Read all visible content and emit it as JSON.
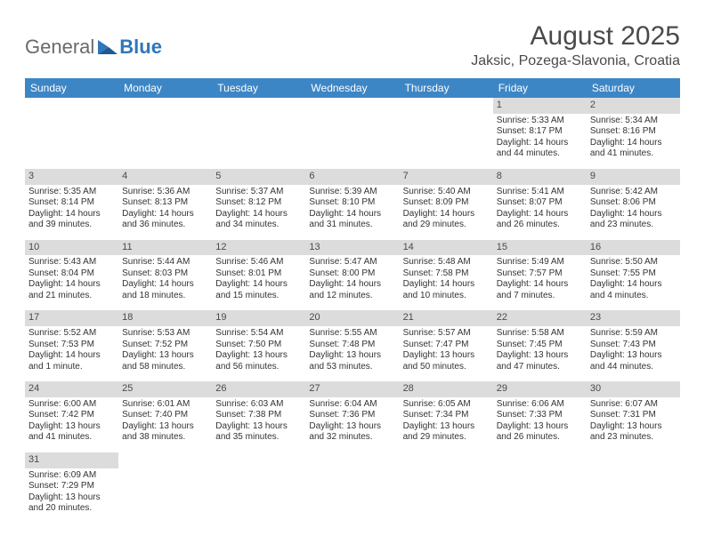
{
  "logo": {
    "text1": "General",
    "text2": "Blue"
  },
  "title": "August 2025",
  "location": "Jaksic, Pozega-Slavonia, Croatia",
  "weekdays": [
    "Sunday",
    "Monday",
    "Tuesday",
    "Wednesday",
    "Thursday",
    "Friday",
    "Saturday"
  ],
  "colors": {
    "header_bg": "#3d86c6",
    "header_fg": "#ffffff",
    "daynum_bg": "#dcdcdc",
    "page_bg": "#ffffff",
    "text": "#333333",
    "logo_blue": "#2f77bb"
  },
  "weeks": [
    [
      null,
      null,
      null,
      null,
      null,
      {
        "n": "1",
        "sr": "Sunrise: 5:33 AM",
        "ss": "Sunset: 8:17 PM",
        "dl1": "Daylight: 14 hours",
        "dl2": "and 44 minutes."
      },
      {
        "n": "2",
        "sr": "Sunrise: 5:34 AM",
        "ss": "Sunset: 8:16 PM",
        "dl1": "Daylight: 14 hours",
        "dl2": "and 41 minutes."
      }
    ],
    [
      {
        "n": "3",
        "sr": "Sunrise: 5:35 AM",
        "ss": "Sunset: 8:14 PM",
        "dl1": "Daylight: 14 hours",
        "dl2": "and 39 minutes."
      },
      {
        "n": "4",
        "sr": "Sunrise: 5:36 AM",
        "ss": "Sunset: 8:13 PM",
        "dl1": "Daylight: 14 hours",
        "dl2": "and 36 minutes."
      },
      {
        "n": "5",
        "sr": "Sunrise: 5:37 AM",
        "ss": "Sunset: 8:12 PM",
        "dl1": "Daylight: 14 hours",
        "dl2": "and 34 minutes."
      },
      {
        "n": "6",
        "sr": "Sunrise: 5:39 AM",
        "ss": "Sunset: 8:10 PM",
        "dl1": "Daylight: 14 hours",
        "dl2": "and 31 minutes."
      },
      {
        "n": "7",
        "sr": "Sunrise: 5:40 AM",
        "ss": "Sunset: 8:09 PM",
        "dl1": "Daylight: 14 hours",
        "dl2": "and 29 minutes."
      },
      {
        "n": "8",
        "sr": "Sunrise: 5:41 AM",
        "ss": "Sunset: 8:07 PM",
        "dl1": "Daylight: 14 hours",
        "dl2": "and 26 minutes."
      },
      {
        "n": "9",
        "sr": "Sunrise: 5:42 AM",
        "ss": "Sunset: 8:06 PM",
        "dl1": "Daylight: 14 hours",
        "dl2": "and 23 minutes."
      }
    ],
    [
      {
        "n": "10",
        "sr": "Sunrise: 5:43 AM",
        "ss": "Sunset: 8:04 PM",
        "dl1": "Daylight: 14 hours",
        "dl2": "and 21 minutes."
      },
      {
        "n": "11",
        "sr": "Sunrise: 5:44 AM",
        "ss": "Sunset: 8:03 PM",
        "dl1": "Daylight: 14 hours",
        "dl2": "and 18 minutes."
      },
      {
        "n": "12",
        "sr": "Sunrise: 5:46 AM",
        "ss": "Sunset: 8:01 PM",
        "dl1": "Daylight: 14 hours",
        "dl2": "and 15 minutes."
      },
      {
        "n": "13",
        "sr": "Sunrise: 5:47 AM",
        "ss": "Sunset: 8:00 PM",
        "dl1": "Daylight: 14 hours",
        "dl2": "and 12 minutes."
      },
      {
        "n": "14",
        "sr": "Sunrise: 5:48 AM",
        "ss": "Sunset: 7:58 PM",
        "dl1": "Daylight: 14 hours",
        "dl2": "and 10 minutes."
      },
      {
        "n": "15",
        "sr": "Sunrise: 5:49 AM",
        "ss": "Sunset: 7:57 PM",
        "dl1": "Daylight: 14 hours",
        "dl2": "and 7 minutes."
      },
      {
        "n": "16",
        "sr": "Sunrise: 5:50 AM",
        "ss": "Sunset: 7:55 PM",
        "dl1": "Daylight: 14 hours",
        "dl2": "and 4 minutes."
      }
    ],
    [
      {
        "n": "17",
        "sr": "Sunrise: 5:52 AM",
        "ss": "Sunset: 7:53 PM",
        "dl1": "Daylight: 14 hours",
        "dl2": "and 1 minute."
      },
      {
        "n": "18",
        "sr": "Sunrise: 5:53 AM",
        "ss": "Sunset: 7:52 PM",
        "dl1": "Daylight: 13 hours",
        "dl2": "and 58 minutes."
      },
      {
        "n": "19",
        "sr": "Sunrise: 5:54 AM",
        "ss": "Sunset: 7:50 PM",
        "dl1": "Daylight: 13 hours",
        "dl2": "and 56 minutes."
      },
      {
        "n": "20",
        "sr": "Sunrise: 5:55 AM",
        "ss": "Sunset: 7:48 PM",
        "dl1": "Daylight: 13 hours",
        "dl2": "and 53 minutes."
      },
      {
        "n": "21",
        "sr": "Sunrise: 5:57 AM",
        "ss": "Sunset: 7:47 PM",
        "dl1": "Daylight: 13 hours",
        "dl2": "and 50 minutes."
      },
      {
        "n": "22",
        "sr": "Sunrise: 5:58 AM",
        "ss": "Sunset: 7:45 PM",
        "dl1": "Daylight: 13 hours",
        "dl2": "and 47 minutes."
      },
      {
        "n": "23",
        "sr": "Sunrise: 5:59 AM",
        "ss": "Sunset: 7:43 PM",
        "dl1": "Daylight: 13 hours",
        "dl2": "and 44 minutes."
      }
    ],
    [
      {
        "n": "24",
        "sr": "Sunrise: 6:00 AM",
        "ss": "Sunset: 7:42 PM",
        "dl1": "Daylight: 13 hours",
        "dl2": "and 41 minutes."
      },
      {
        "n": "25",
        "sr": "Sunrise: 6:01 AM",
        "ss": "Sunset: 7:40 PM",
        "dl1": "Daylight: 13 hours",
        "dl2": "and 38 minutes."
      },
      {
        "n": "26",
        "sr": "Sunrise: 6:03 AM",
        "ss": "Sunset: 7:38 PM",
        "dl1": "Daylight: 13 hours",
        "dl2": "and 35 minutes."
      },
      {
        "n": "27",
        "sr": "Sunrise: 6:04 AM",
        "ss": "Sunset: 7:36 PM",
        "dl1": "Daylight: 13 hours",
        "dl2": "and 32 minutes."
      },
      {
        "n": "28",
        "sr": "Sunrise: 6:05 AM",
        "ss": "Sunset: 7:34 PM",
        "dl1": "Daylight: 13 hours",
        "dl2": "and 29 minutes."
      },
      {
        "n": "29",
        "sr": "Sunrise: 6:06 AM",
        "ss": "Sunset: 7:33 PM",
        "dl1": "Daylight: 13 hours",
        "dl2": "and 26 minutes."
      },
      {
        "n": "30",
        "sr": "Sunrise: 6:07 AM",
        "ss": "Sunset: 7:31 PM",
        "dl1": "Daylight: 13 hours",
        "dl2": "and 23 minutes."
      }
    ],
    [
      {
        "n": "31",
        "sr": "Sunrise: 6:09 AM",
        "ss": "Sunset: 7:29 PM",
        "dl1": "Daylight: 13 hours",
        "dl2": "and 20 minutes."
      },
      null,
      null,
      null,
      null,
      null,
      null
    ]
  ]
}
